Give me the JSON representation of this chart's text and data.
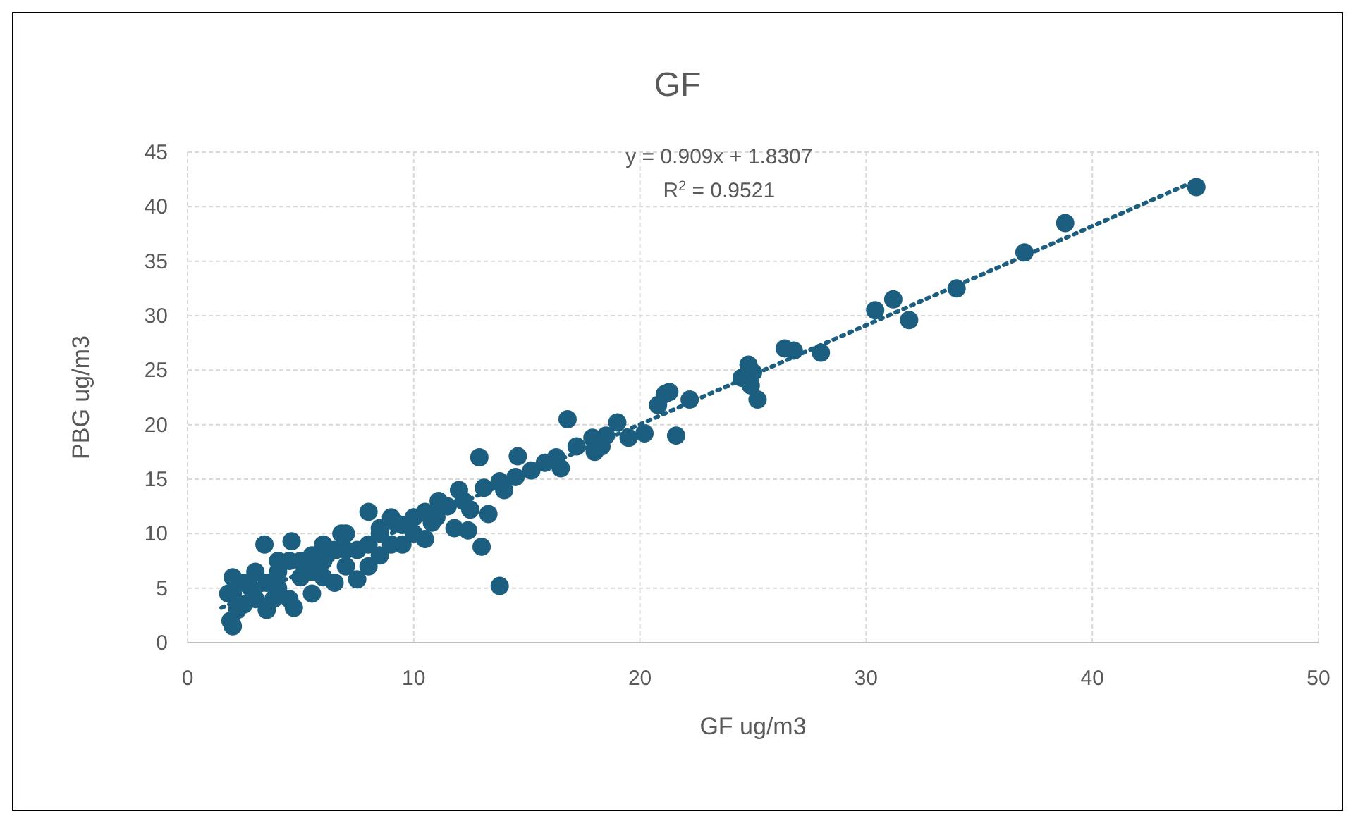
{
  "chart_data": {
    "type": "scatter",
    "title": "GF",
    "xlabel": "GF ug/m3",
    "ylabel": "PBG ug/m3",
    "xlim": [
      0,
      50
    ],
    "xticks": [
      0,
      10,
      20,
      30,
      40,
      50
    ],
    "ylim": [
      0,
      45
    ],
    "yticks": [
      0,
      5,
      10,
      15,
      20,
      25,
      30,
      35,
      40,
      45
    ],
    "grid": true,
    "marker": "circle",
    "annotations": [
      "y = 0.909x + 1.8307",
      "R$^{2}$ = 0.9521"
    ],
    "series": [
      {
        "color": "#1b5e80",
        "x": [
          44.6,
          38.8,
          37.0,
          34.0,
          31.2,
          30.4,
          31.9,
          28.0,
          26.4,
          26.8,
          24.8,
          25.0,
          24.5,
          24.9,
          25.2,
          22.2,
          21.1,
          21.3,
          20.8,
          21.6,
          20.2,
          19.0,
          18.5,
          17.9,
          18.3,
          17.2,
          16.8,
          16.3,
          15.8,
          15.2,
          14.6,
          14.5,
          13.8,
          13.1,
          12.9,
          13.3,
          13.0,
          13.8,
          12.5,
          12.2,
          12.0,
          11.5,
          11.1,
          11.0,
          10.5,
          10.0,
          9.5,
          9.0,
          8.5,
          8.0,
          8.0,
          7.5,
          7.0,
          7.0,
          6.5,
          6.0,
          6.0,
          5.5,
          5.0,
          4.6,
          4.5,
          4.5,
          4.0,
          4.0,
          3.5,
          3.4,
          3.0,
          3.0,
          2.5,
          2.5,
          2.0,
          2.0,
          1.8,
          1.9,
          2.0,
          2.2,
          3.5,
          4.7,
          5.5,
          6.5,
          7.5,
          8.5,
          9.5,
          10.5,
          11.8,
          12.4,
          10.0,
          9.0,
          8.0,
          6.0,
          5.0,
          4.0,
          5.5,
          7.0,
          8.5,
          2.8,
          3.8,
          6.8,
          9.2,
          10.8,
          14.0,
          16.5,
          18.0,
          19.5
        ],
        "values": [
          41.8,
          38.5,
          35.8,
          32.5,
          31.5,
          30.5,
          29.6,
          26.6,
          27.0,
          26.8,
          25.5,
          24.8,
          24.3,
          23.6,
          22.3,
          22.3,
          22.8,
          23.0,
          21.8,
          19.0,
          19.2,
          20.2,
          19.0,
          18.8,
          18.0,
          18.0,
          20.5,
          17.0,
          16.5,
          15.8,
          17.1,
          15.2,
          14.8,
          14.2,
          17.0,
          11.8,
          8.8,
          5.2,
          12.2,
          13.0,
          14.0,
          12.5,
          13.0,
          11.5,
          12.0,
          11.5,
          10.8,
          11.5,
          10.0,
          12.0,
          9.0,
          8.5,
          10.0,
          7.0,
          8.5,
          7.5,
          6.0,
          8.0,
          6.0,
          9.3,
          7.5,
          4.0,
          6.5,
          5.0,
          5.5,
          9.0,
          6.5,
          4.0,
          5.5,
          3.5,
          6.0,
          4.5,
          4.5,
          2.0,
          1.5,
          3.0,
          3.0,
          3.2,
          4.5,
          5.5,
          5.8,
          8.0,
          9.0,
          9.5,
          10.5,
          10.3,
          10.0,
          9.0,
          7.0,
          9.0,
          7.5,
          7.5,
          6.5,
          8.5,
          10.5,
          5.0,
          4.0,
          10.0,
          11.0,
          11.0,
          14.0,
          16.0,
          17.5,
          18.8
        ]
      },
      {
        "type": "line",
        "color": "#1b5e80",
        "line_style": "dotted",
        "marker": "none",
        "x": [
          1.5,
          44.6
        ],
        "values": [
          3.2,
          42.4
        ]
      }
    ]
  }
}
